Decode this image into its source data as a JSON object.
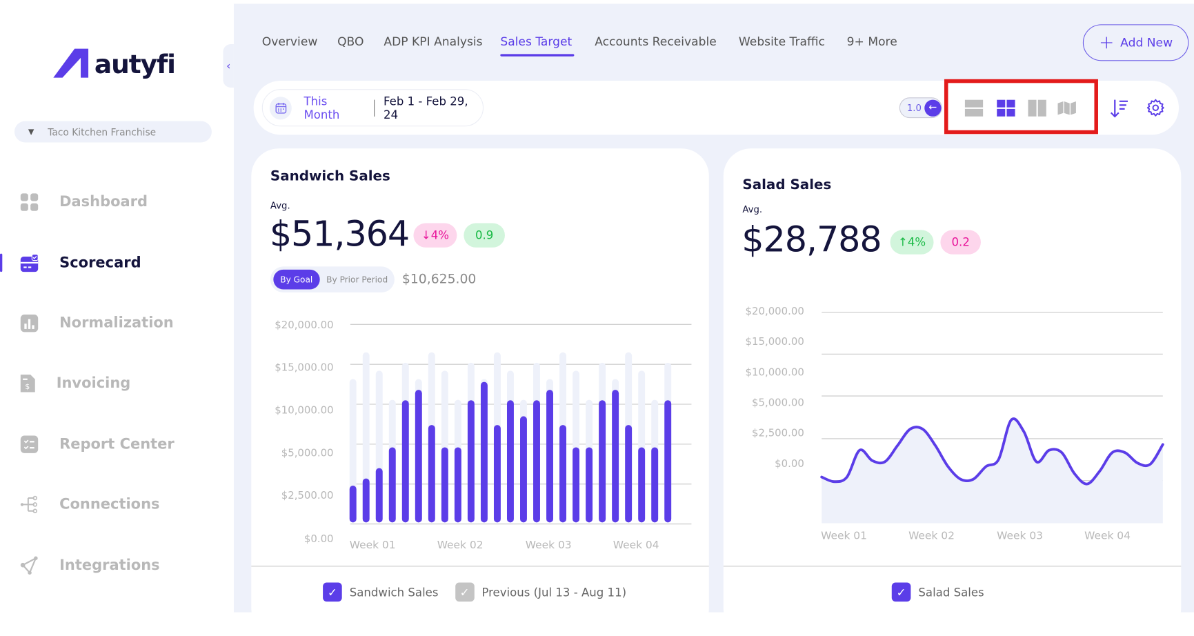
{
  "brand": {
    "name": "autyfi",
    "accent": "#5b3de8"
  },
  "sidebar": {
    "org_selector": "Taco Kitchen Franchise",
    "items": [
      {
        "label": "Dashboard",
        "icon": "dashboard-grid-icon",
        "active": false
      },
      {
        "label": "Scorecard",
        "icon": "scorecard-icon",
        "active": true
      },
      {
        "label": "Normalization",
        "icon": "bar-chart-icon",
        "active": false
      },
      {
        "label": "Invoicing",
        "icon": "invoice-icon",
        "active": false
      },
      {
        "label": "Report Center",
        "icon": "checklist-icon",
        "active": false
      },
      {
        "label": "Connections",
        "icon": "connections-icon",
        "active": false
      },
      {
        "label": "Integrations",
        "icon": "integrations-icon",
        "active": false
      }
    ]
  },
  "tabs": [
    {
      "label": "Overview",
      "active": false
    },
    {
      "label": "QBO",
      "active": false
    },
    {
      "label": "ADP KPI Analysis",
      "active": false
    },
    {
      "label": "Sales Target",
      "active": true
    },
    {
      "label": "Accounts Receivable",
      "active": false
    },
    {
      "label": "Website Traffic",
      "active": false
    },
    {
      "label": "9+ More",
      "active": false
    }
  ],
  "add_new_label": "Add New",
  "toolbar": {
    "period": "This Month",
    "date_range": "Feb 1 - Feb 29, 24",
    "zoom_value": "1.0",
    "layout_options": [
      "rows-layout-icon",
      "grid-layout-icon",
      "columns-layout-icon",
      "map-layout-icon"
    ],
    "selected_layout": "grid-layout-icon",
    "highlight_color": "#e31b1b"
  },
  "cards": [
    {
      "title": "Sandwich Sales",
      "avg_label": "Avg.",
      "value": "$51,364",
      "change": "4%",
      "change_direction": "down",
      "score": "0.9",
      "segment": {
        "options": [
          "By Goal",
          "By Prior Period"
        ],
        "selected": "By Goal"
      },
      "goal_value": "$10,625.00",
      "legend": [
        {
          "label": "Sandwich Sales",
          "checked": true,
          "color": "#5b3de8"
        },
        {
          "label": "Previous (Jul 13 - Aug 11)",
          "checked": true,
          "color": "#c4c4c4"
        }
      ]
    },
    {
      "title": "Salad Sales",
      "avg_label": "Avg.",
      "value": "$28,788",
      "change": "4%",
      "change_direction": "up",
      "score": "0.2",
      "legend": [
        {
          "label": "Salad Sales",
          "checked": true,
          "color": "#5b3de8"
        }
      ]
    }
  ],
  "chart_data": [
    {
      "type": "bar",
      "y_ticks": [
        "$0.00",
        "$2,500.00",
        "$5,000.00",
        "$10,000.00",
        "$15,000.00",
        "$20,000.00"
      ],
      "y_tick_values": [
        0,
        2500,
        5000,
        10000,
        15000,
        20000
      ],
      "x_ticks": [
        "Week 01",
        "Week 02",
        "Week 03",
        "Week 04"
      ],
      "grid": true,
      "series": [
        {
          "name": "Sandwich Sales",
          "color": "#5b3de8",
          "values": [
            2400,
            2850,
            3500,
            4800,
            10500,
            11800,
            7400,
            4800,
            4800,
            10500,
            12800,
            7400,
            10500,
            8500,
            10500,
            11800,
            7400,
            4800,
            4800,
            10500,
            11800,
            7400,
            4800,
            4800,
            10500
          ]
        },
        {
          "name": "Previous (Jul 13 - Aug 11)",
          "color": "#eef1fa",
          "values": [
            13150,
            16500,
            14200,
            10550,
            15200,
            13150,
            16500,
            14200,
            10550,
            15200,
            13150,
            16500,
            14200,
            10550,
            15200,
            13150,
            16500,
            14200,
            10550,
            15200,
            13150,
            16500,
            14200,
            10550,
            15200
          ]
        }
      ]
    },
    {
      "type": "area",
      "y_ticks": [
        "$0.00",
        "$2,500.00",
        "$5,000.00",
        "$10,000.00",
        "$15,000.00",
        "$20,000.00"
      ],
      "y_tick_values": [
        0,
        2500,
        5000,
        10000,
        15000,
        20000
      ],
      "x_ticks": [
        "Week 01",
        "Week 02",
        "Week 03",
        "Week 04"
      ],
      "grid": true,
      "series": [
        {
          "name": "Salad Sales",
          "color": "#5b3de8",
          "fill": "#eef1fa",
          "values": [
            -1150,
            -1530,
            -1150,
            1050,
            200,
            100,
            1430,
            2780,
            2780,
            1430,
            -290,
            -1330,
            -1330,
            -290,
            290,
            3530,
            2580,
            100,
            1050,
            860,
            -860,
            -1720,
            -670,
            860,
            860,
            0,
            -100,
            1520
          ]
        }
      ]
    }
  ]
}
